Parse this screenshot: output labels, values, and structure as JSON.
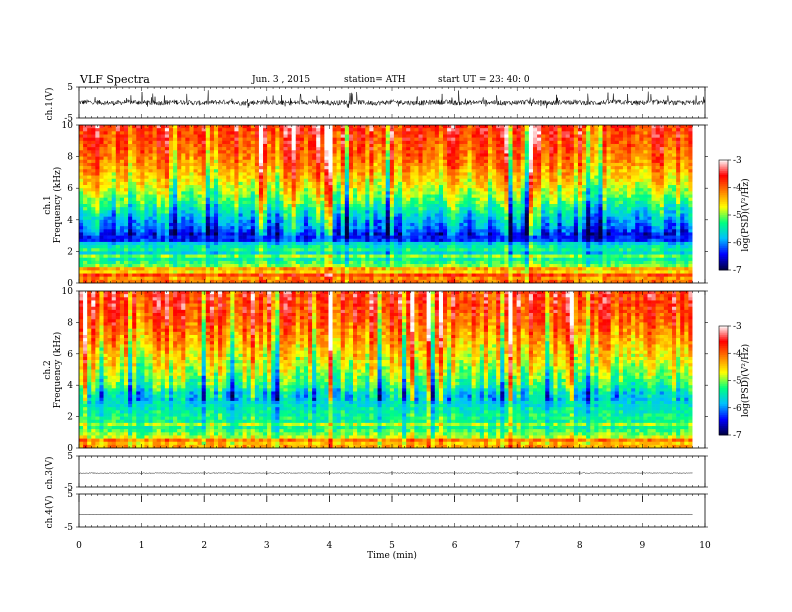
{
  "header": {
    "title": "VLF  Spectra",
    "date": "Jun. 3  , 2015",
    "station": "station= ATH",
    "start": "start  UT =   23: 40: 0"
  },
  "chart_data": [
    {
      "type": "line",
      "ylabel": "ch.1(V)",
      "ylim": [
        -5,
        5
      ],
      "yticks": [
        "5",
        "-5"
      ],
      "xlim": [
        0,
        10
      ],
      "trace": "noisy waveform, amplitude about 1 V around 0, with frequent spikes up to 3 V"
    },
    {
      "type": "heatmap",
      "ylabel": "ch.1\nFrequency  (kHz)",
      "ylim": [
        0,
        10
      ],
      "yticks": [
        "0",
        "2",
        "4",
        "6",
        "8",
        "10"
      ],
      "xlim": [
        0,
        9.8
      ],
      "colorbar": {
        "label": "log(PSD)(V²/Hz)",
        "range": [
          -7,
          -3
        ],
        "ticks": [
          "-3",
          "-4",
          "-5",
          "-6",
          "-7"
        ]
      },
      "band_profile_khz": [
        [
          0,
          -4.0
        ],
        [
          0.5,
          -4.3
        ],
        [
          1.0,
          -4.9
        ],
        [
          1.5,
          -5.4
        ],
        [
          2.0,
          -5.7
        ],
        [
          2.5,
          -6.2
        ],
        [
          3.0,
          -6.4
        ],
        [
          3.5,
          -6.0
        ],
        [
          4.0,
          -5.8
        ],
        [
          4.5,
          -5.5
        ],
        [
          5.0,
          -5.2
        ],
        [
          6.0,
          -4.7
        ],
        [
          7.0,
          -4.3
        ],
        [
          8.0,
          -4.0
        ],
        [
          9.0,
          -3.8
        ],
        [
          10.0,
          -3.6
        ]
      ]
    },
    {
      "type": "heatmap",
      "ylabel": "ch.2\nFrequency  (kHz)",
      "ylim": [
        0,
        10
      ],
      "yticks": [
        "0",
        "2",
        "4",
        "6",
        "8",
        "10"
      ],
      "xlim": [
        0,
        9.8
      ],
      "colorbar": {
        "label": "log(PSD)(V²/Hz)",
        "range": [
          -7,
          -3
        ],
        "ticks": [
          "-3",
          "-4",
          "-5",
          "-6",
          "-7"
        ]
      },
      "band_profile_khz": [
        [
          0,
          -4.2
        ],
        [
          0.5,
          -4.6
        ],
        [
          1.0,
          -5.1
        ],
        [
          1.5,
          -5.4
        ],
        [
          2.0,
          -5.3
        ],
        [
          2.5,
          -5.5
        ],
        [
          3.0,
          -5.7
        ],
        [
          3.5,
          -5.6
        ],
        [
          4.0,
          -5.2
        ],
        [
          4.5,
          -5.0
        ],
        [
          5.0,
          -4.8
        ],
        [
          6.0,
          -4.5
        ],
        [
          7.0,
          -4.2
        ],
        [
          8.0,
          -3.9
        ],
        [
          9.0,
          -3.7
        ],
        [
          10.0,
          -3.6
        ]
      ]
    },
    {
      "type": "line",
      "ylabel": "ch.3(V)",
      "ylim": [
        -5,
        5
      ],
      "yticks": [
        "5",
        "-5"
      ],
      "xlim": [
        0,
        9.8
      ],
      "trace": "flat line near -0.5 V with small ripple"
    },
    {
      "type": "line",
      "ylabel": "ch.4(V)",
      "ylim": [
        -5,
        5
      ],
      "yticks": [
        "5",
        "-5"
      ],
      "xlim": [
        0,
        9.8
      ],
      "trace": "flat line near -1 V with periodic 1-min markers at top"
    }
  ],
  "xaxis": {
    "label": "Time  (min)",
    "ticks": [
      "0",
      "1",
      "2",
      "3",
      "4",
      "5",
      "6",
      "7",
      "8",
      "9",
      "10"
    ],
    "range": [
      0,
      10
    ]
  },
  "colors": {
    "scale": [
      "#000040",
      "#0000ff",
      "#00c0ff",
      "#00ff80",
      "#ffff00",
      "#ff8000",
      "#ff0000",
      "#ffffff"
    ]
  }
}
